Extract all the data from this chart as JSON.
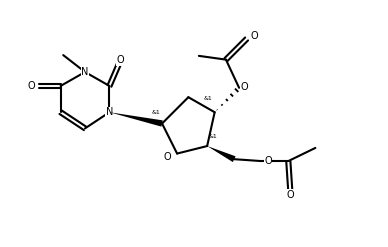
{
  "bg_color": "#ffffff",
  "line_color": "#000000",
  "bond_lw": 1.5,
  "font_size": 7.0,
  "fig_width": 3.88,
  "fig_height": 2.47,
  "dpi": 100,
  "xlim": [
    0,
    10
  ],
  "ylim": [
    0,
    6.5
  ]
}
